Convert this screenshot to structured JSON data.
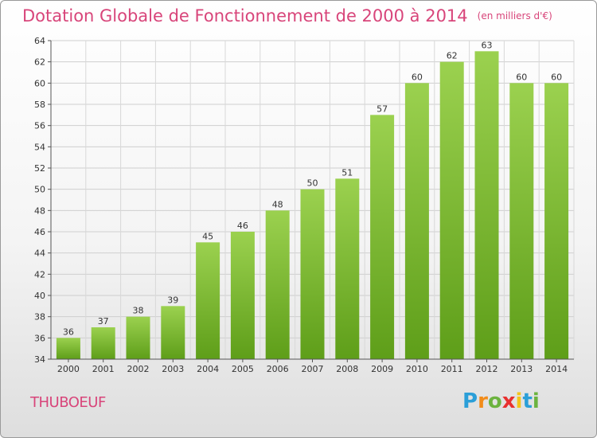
{
  "title": "Dotation Globale de Fonctionnement de 2000 à 2014",
  "subtitle": "(en milliers d'€)",
  "commune": "THUBOEUF",
  "logo": {
    "letters": [
      "P",
      "r",
      "o",
      "x",
      "i",
      "t",
      "i"
    ],
    "colors": [
      "#2b9fd8",
      "#f28c1a",
      "#6cb33f",
      "#e8302f",
      "#f3c41a",
      "#2b9fd8",
      "#6cb33f"
    ]
  },
  "chart_data": {
    "type": "bar",
    "title": "Dotation Globale de Fonctionnement de 2000 à 2014",
    "subtitle": "(en milliers d'€)",
    "categories": [
      "2000",
      "2001",
      "2002",
      "2003",
      "2004",
      "2005",
      "2006",
      "2007",
      "2008",
      "2009",
      "2010",
      "2011",
      "2012",
      "2013",
      "2014"
    ],
    "values": [
      36,
      37,
      38,
      39,
      45,
      46,
      48,
      50,
      51,
      57,
      60,
      62,
      63,
      60,
      60
    ],
    "ylim": [
      34,
      64
    ],
    "yticks": [
      34,
      36,
      38,
      40,
      42,
      44,
      46,
      48,
      50,
      52,
      54,
      56,
      58,
      60,
      62,
      64
    ],
    "grid": true,
    "bar_color_top": "#9bd14f",
    "bar_color_bottom": "#5e9e19"
  }
}
